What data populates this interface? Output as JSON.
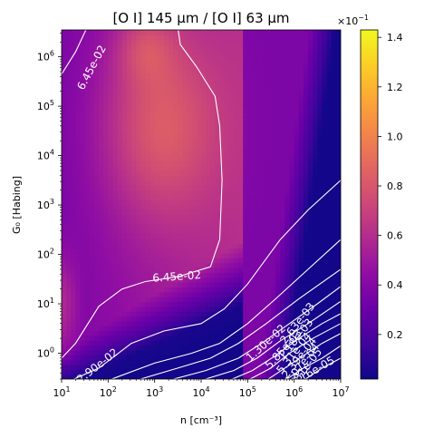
{
  "chart_data": {
    "type": "heatmap",
    "title": "[O I] 145 μm / [O I] 63 μm",
    "xlabel": "n [cm⁻³]",
    "ylabel": "G₀ [Habing]",
    "xscale": "log",
    "yscale": "log",
    "xlim": [
      10,
      10000000
    ],
    "ylim": [
      0.3,
      3500000
    ],
    "x_ticks": [
      {
        "value": 10,
        "base": "10",
        "exp": "1"
      },
      {
        "value": 100,
        "base": "10",
        "exp": "2"
      },
      {
        "value": 1000,
        "base": "10",
        "exp": "3"
      },
      {
        "value": 10000,
        "base": "10",
        "exp": "4"
      },
      {
        "value": 100000,
        "base": "10",
        "exp": "5"
      },
      {
        "value": 1000000,
        "base": "10",
        "exp": "6"
      },
      {
        "value": 10000000,
        "base": "10",
        "exp": "7"
      }
    ],
    "y_ticks": [
      {
        "value": 1,
        "base": "10",
        "exp": "0"
      },
      {
        "value": 10,
        "base": "10",
        "exp": "1"
      },
      {
        "value": 100,
        "base": "10",
        "exp": "2"
      },
      {
        "value": 1000,
        "base": "10",
        "exp": "3"
      },
      {
        "value": 10000,
        "base": "10",
        "exp": "4"
      },
      {
        "value": 100000,
        "base": "10",
        "exp": "5"
      },
      {
        "value": 1000000,
        "base": "10",
        "exp": "6"
      }
    ],
    "colormap": "plasma",
    "colorbar": {
      "multiplier_base": "×10",
      "multiplier_exp": "−1",
      "vmin": 0.02,
      "vmax": 1.43,
      "ticks": [
        "0.2",
        "0.4",
        "0.6",
        "0.8",
        "1.0",
        "1.2",
        "1.4"
      ],
      "tick_values": [
        0.2,
        0.4,
        0.6,
        0.8,
        1.0,
        1.2,
        1.4
      ]
    },
    "contour_levels": [
      "6.45e-02",
      "2.90e-02",
      "1.30e-02",
      "5.85e-03",
      "2.63e-03",
      "1.18e-03",
      "5.31e-04",
      "2.39e-04",
      "1.07e-04",
      "4.81e-05",
      "2.16e-05"
    ],
    "contour_labels": [
      {
        "text": "6.45e-02",
        "x": 45,
        "y": 600000,
        "angle": -62
      },
      {
        "text": "6.45e-02",
        "x": 3000,
        "y": 35,
        "angle": -4
      },
      {
        "text": "2.90e-02",
        "x": 60,
        "y": 0.55,
        "angle": -38
      },
      {
        "text": "1.30e-02",
        "x": 250000,
        "y": 1.6,
        "angle": -42
      },
      {
        "text": "5.85e-03",
        "x": 600000,
        "y": 1.2,
        "angle": -48
      },
      {
        "text": "2.63e-03",
        "x": 1200000,
        "y": 4,
        "angle": -52
      },
      {
        "text": "1.18e-03",
        "x": 1100000,
        "y": 1.9,
        "angle": -52
      },
      {
        "text": "5.31e-04",
        "x": 1000000,
        "y": 1.0,
        "angle": -52
      },
      {
        "text": "2.39e-04",
        "x": 1300000,
        "y": 0.8,
        "angle": -52
      },
      {
        "text": "1.07e-04",
        "x": 1500000,
        "y": 0.6,
        "angle": -52
      },
      {
        "text": "4.81e-05",
        "x": 1700000,
        "y": 0.48,
        "angle": -52
      },
      {
        "text": "2.16e-05",
        "x": 2500000,
        "y": 0.42,
        "angle": -30
      }
    ]
  }
}
